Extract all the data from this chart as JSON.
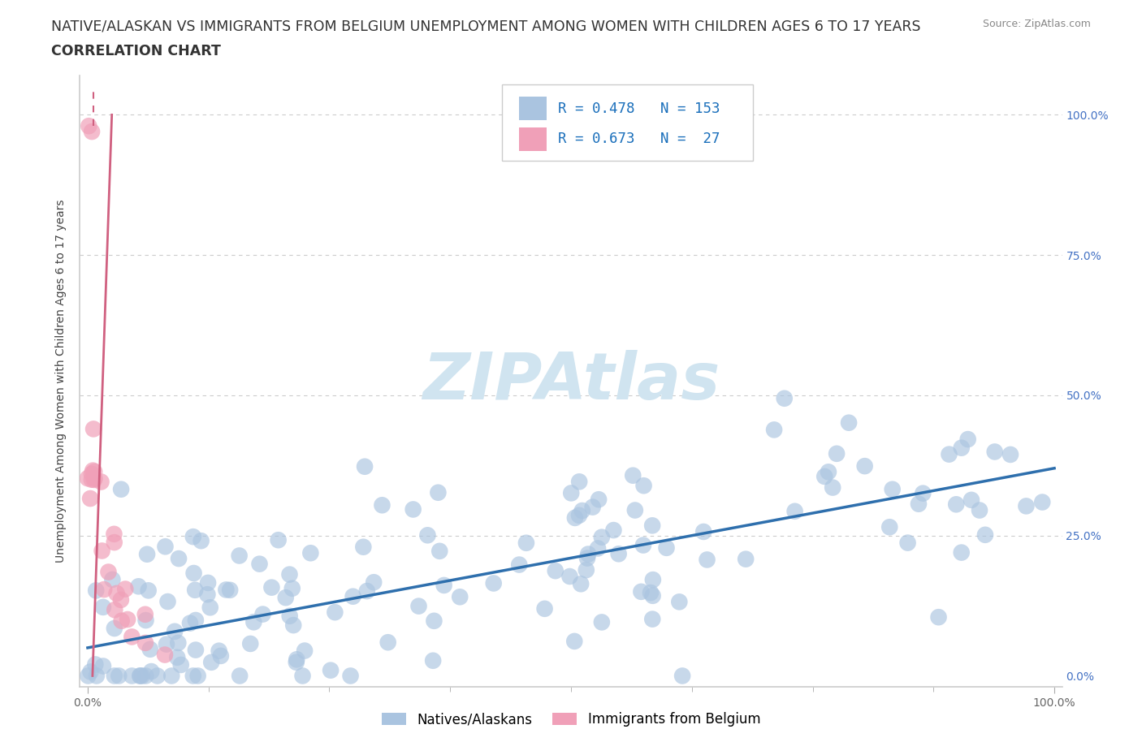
{
  "title_line1": "NATIVE/ALASKAN VS IMMIGRANTS FROM BELGIUM UNEMPLOYMENT AMONG WOMEN WITH CHILDREN AGES 6 TO 17 YEARS",
  "title_line2": "CORRELATION CHART",
  "source_text": "Source: ZipAtlas.com",
  "ylabel": "Unemployment Among Women with Children Ages 6 to 17 years",
  "native_R": 0.478,
  "native_N": 153,
  "belgium_R": 0.673,
  "belgium_N": 27,
  "native_color": "#aac4e0",
  "native_line_color": "#2e6fad",
  "belgium_color": "#f0a0b8",
  "belgium_line_color": "#d06080",
  "watermark": "ZIPAtlas",
  "watermark_color": "#d0e4f0",
  "legend_R_color": "#1a6fbb",
  "background_color": "#ffffff",
  "title_fontsize": 12.5,
  "axis_label_fontsize": 10,
  "tick_fontsize": 10,
  "right_tick_color": "#4472c4",
  "grid_color": "#cccccc",
  "spine_color": "#cccccc"
}
